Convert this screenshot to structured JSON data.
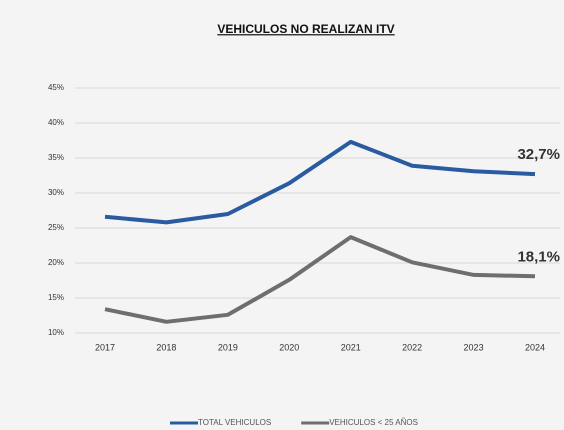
{
  "chart_data": {
    "type": "line",
    "title": "VEHICULOS NO REALIZAN ITV",
    "categories": [
      "2017",
      "2018",
      "2019",
      "2020",
      "2021",
      "2022",
      "2023",
      "2024"
    ],
    "series": [
      {
        "name": "TOTAL VEHICULOS",
        "color": "#2a5aa0",
        "values": [
          26.6,
          25.8,
          27.0,
          31.4,
          37.3,
          33.9,
          33.1,
          32.7
        ],
        "value_labels": [
          null,
          null,
          null,
          null,
          null,
          null,
          null,
          "32,7%"
        ]
      },
      {
        "name": "VEHICULOS < 25 AÑOS",
        "color": "#6e6e6e",
        "values": [
          13.4,
          11.6,
          12.6,
          17.6,
          23.7,
          20.1,
          18.3,
          18.1
        ],
        "value_labels": [
          null,
          null,
          null,
          null,
          null,
          null,
          null,
          "18,1%"
        ]
      }
    ],
    "ylim": [
      10,
      45
    ],
    "yticks": [
      {
        "value": 10,
        "label": "10%"
      },
      {
        "value": 15,
        "label": "15%"
      },
      {
        "value": 20,
        "label": "20%"
      },
      {
        "value": 25,
        "label": "25%"
      },
      {
        "value": 30,
        "label": "30%"
      },
      {
        "value": 35,
        "label": "35%"
      },
      {
        "value": 40,
        "label": "40%"
      },
      {
        "value": 45,
        "label": "45%"
      }
    ],
    "grid": true,
    "legend": "bottom"
  }
}
